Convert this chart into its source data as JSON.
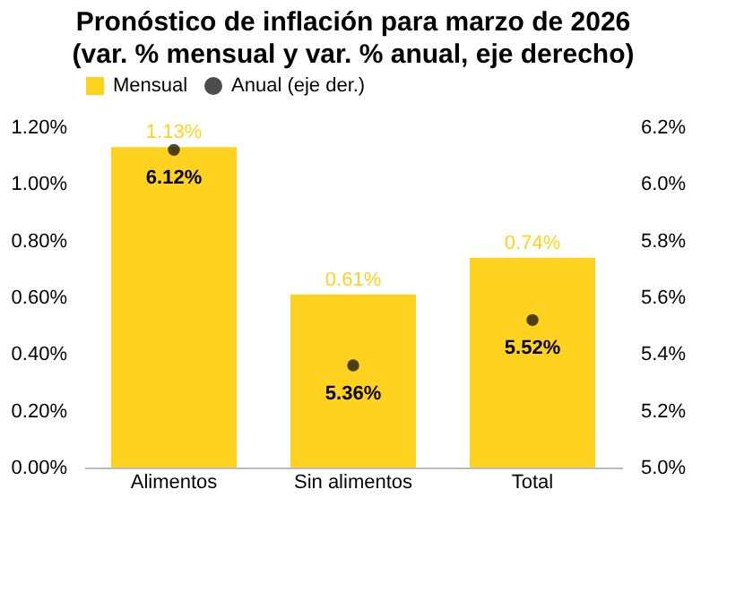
{
  "chart_data": {
    "type": "bar",
    "title": "Pronóstico de inflación para marzo de 2026",
    "subtitle": "(var. % mensual y var. % anual, eje derecho)",
    "categories": [
      "Alimentos",
      "Sin alimentos",
      "Total"
    ],
    "series": [
      {
        "name": "Mensual",
        "color": "#ffd21f",
        "values": [
          1.13,
          0.61,
          0.74
        ],
        "value_labels": [
          "1.13%",
          "0.61%",
          "0.74%"
        ]
      },
      {
        "name": "Anual (eje der.)",
        "type": "scatter",
        "axis": "y2",
        "color": "#000000",
        "values": [
          6.12,
          5.36,
          5.52
        ],
        "value_labels": [
          "6.12%",
          "5.36%",
          "5.52%"
        ]
      }
    ],
    "ylim": [
      0,
      1.2
    ],
    "yticks": [
      {
        "value": 0,
        "label": "0.00%"
      },
      {
        "value": 0.2,
        "label": "0.20%"
      },
      {
        "value": 0.4,
        "label": "0.40%"
      },
      {
        "value": 0.6,
        "label": "0.60%"
      },
      {
        "value": 0.8,
        "label": "0.80%"
      },
      {
        "value": 1.0,
        "label": "1.00%"
      },
      {
        "value": 1.2,
        "label": "1.20%"
      }
    ],
    "y2lim": [
      5.0,
      6.2
    ],
    "y2ticks": [
      {
        "value": 5.0,
        "label": "5.0%"
      },
      {
        "value": 5.2,
        "label": "5.2%"
      },
      {
        "value": 5.4,
        "label": "5.4%"
      },
      {
        "value": 5.6,
        "label": "5.6%"
      },
      {
        "value": 5.8,
        "label": "5.8%"
      },
      {
        "value": 6.0,
        "label": "6.0%"
      },
      {
        "value": 6.2,
        "label": "6.2%"
      }
    ],
    "grid": false,
    "legend": "top",
    "marker": "circle"
  }
}
